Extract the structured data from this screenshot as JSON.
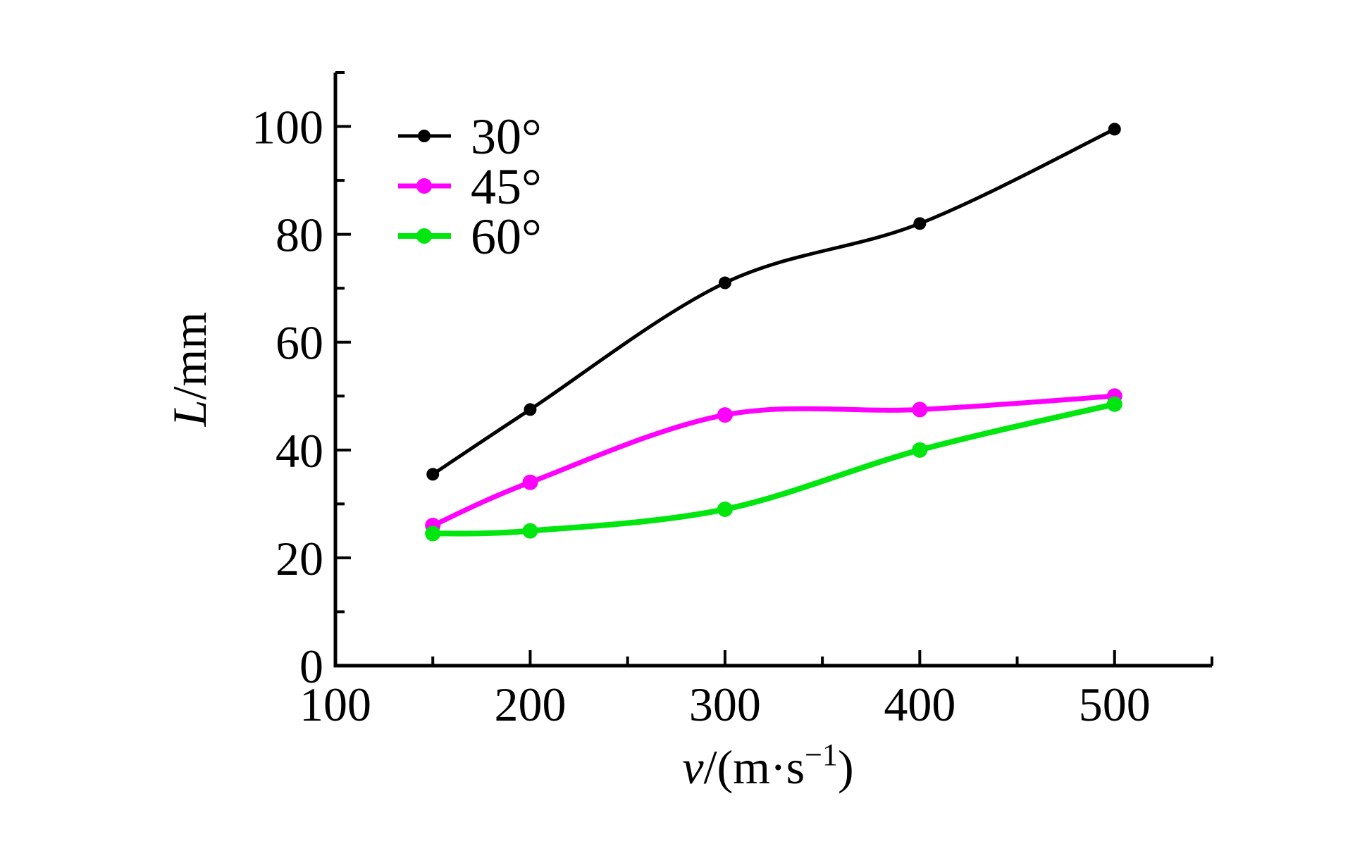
{
  "chart_data": {
    "type": "line",
    "title": "",
    "xlabel": {
      "italic_prefix": "v",
      "body": "/(m·s",
      "superscript": "−1",
      "suffix": ")"
    },
    "ylabel": {
      "italic_prefix": "L",
      "body": "/mm"
    },
    "xlim": [
      100,
      550
    ],
    "ylim": [
      0,
      110
    ],
    "x_major_ticks": [
      100,
      200,
      300,
      400,
      500
    ],
    "x_minor_ticks": [
      150,
      250,
      350,
      450,
      550
    ],
    "y_major_ticks": [
      0,
      20,
      40,
      60,
      80,
      100
    ],
    "y_minor_ticks": [
      10,
      30,
      50,
      70,
      90,
      110
    ],
    "grid": false,
    "background_color": "#ffffff",
    "axis_color": "#000000",
    "x": [
      150,
      200,
      300,
      400,
      500
    ],
    "series": [
      {
        "name": "30°",
        "color": "#000000",
        "line_width": 5,
        "marker": "circle",
        "marker_radius": 9,
        "values": [
          35.5,
          47.5,
          71,
          82,
          99.5
        ]
      },
      {
        "name": "45°",
        "color": "#ff00ff",
        "line_width": 7,
        "marker": "circle",
        "marker_radius": 11,
        "values": [
          26,
          34,
          46.5,
          47.5,
          50
        ]
      },
      {
        "name": "60°",
        "color": "#00e60e",
        "line_width": 8,
        "marker": "circle",
        "marker_radius": 11,
        "values": [
          24.5,
          25,
          29,
          40,
          48.5
        ]
      }
    ],
    "legend": {
      "position": "top-left",
      "entries": [
        "30°",
        "45°",
        "60°"
      ]
    }
  }
}
